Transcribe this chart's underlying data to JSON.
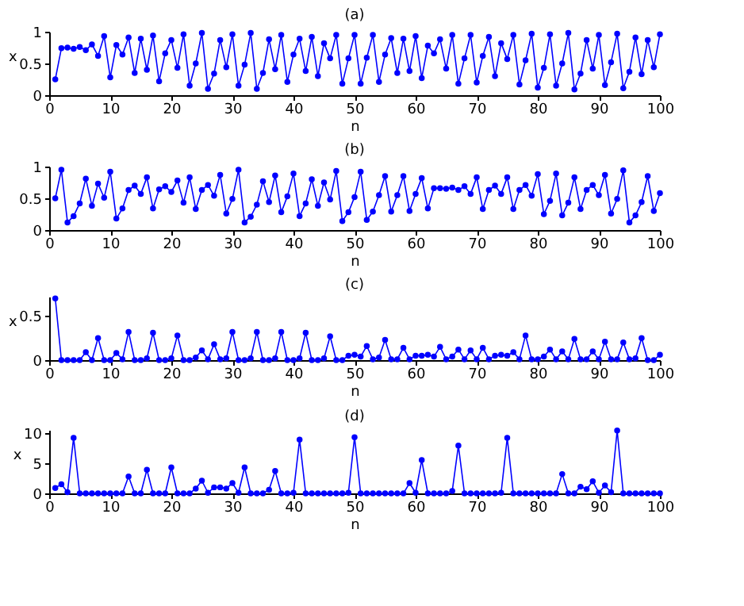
{
  "chart_data": [
    {
      "type": "line",
      "title": "(a)",
      "xlabel": "n",
      "ylabel": "x",
      "xlim": [
        0,
        100
      ],
      "xticks": [
        0,
        10,
        20,
        30,
        40,
        50,
        60,
        70,
        80,
        90,
        100
      ],
      "ylim": [
        0,
        1
      ],
      "yticks": [
        0,
        0.5,
        1
      ],
      "marker": "circle",
      "line_style": "solid",
      "grid": false,
      "x": [
        1,
        2,
        3,
        4,
        5,
        6,
        7,
        8,
        9,
        10,
        11,
        12,
        13,
        14,
        15,
        16,
        17,
        18,
        19,
        20,
        21,
        22,
        23,
        24,
        25,
        26,
        27,
        28,
        29,
        30,
        31,
        32,
        33,
        34,
        35,
        36,
        37,
        38,
        39,
        40,
        41,
        42,
        43,
        44,
        45,
        46,
        47,
        48,
        49,
        50,
        51,
        52,
        53,
        54,
        55,
        56,
        57,
        58,
        59,
        60,
        61,
        62,
        63,
        64,
        65,
        66,
        67,
        68,
        69,
        70,
        71,
        72,
        73,
        74,
        75,
        76,
        77,
        78,
        79,
        80,
        81,
        82,
        83,
        84,
        85,
        86,
        87,
        88,
        89,
        90,
        91,
        92,
        93,
        94,
        95,
        96,
        97,
        98,
        99,
        100
      ],
      "series": [
        {
          "color": "#0000ff",
          "values": [
            0.25,
            0.74,
            0.75,
            0.73,
            0.76,
            0.71,
            0.8,
            0.62,
            0.93,
            0.28,
            0.79,
            0.64,
            0.91,
            0.35,
            0.89,
            0.4,
            0.94,
            0.22,
            0.66,
            0.87,
            0.43,
            0.96,
            0.15,
            0.5,
            0.98,
            0.1,
            0.34,
            0.87,
            0.44,
            0.96,
            0.15,
            0.48,
            0.98,
            0.1,
            0.35,
            0.88,
            0.41,
            0.95,
            0.21,
            0.64,
            0.89,
            0.38,
            0.92,
            0.3,
            0.82,
            0.58,
            0.95,
            0.18,
            0.58,
            0.95,
            0.18,
            0.59,
            0.95,
            0.21,
            0.64,
            0.9,
            0.35,
            0.89,
            0.38,
            0.93,
            0.27,
            0.78,
            0.66,
            0.88,
            0.42,
            0.95,
            0.18,
            0.58,
            0.95,
            0.2,
            0.62,
            0.92,
            0.3,
            0.82,
            0.57,
            0.95,
            0.17,
            0.55,
            0.97,
            0.12,
            0.43,
            0.96,
            0.15,
            0.5,
            0.98,
            0.09,
            0.34,
            0.87,
            0.42,
            0.95,
            0.16,
            0.52,
            0.97,
            0.11,
            0.37,
            0.91,
            0.33,
            0.87,
            0.44,
            0.96
          ]
        }
      ]
    },
    {
      "type": "line",
      "title": "(b)",
      "xlabel": "n",
      "xlim": [
        0,
        100
      ],
      "xticks": [
        0,
        10,
        20,
        30,
        40,
        50,
        60,
        70,
        80,
        90,
        100
      ],
      "ylim": [
        0,
        1
      ],
      "yticks": [
        0,
        0.5,
        1
      ],
      "marker": "circle",
      "line_style": "solid",
      "grid": false,
      "x": [
        1,
        2,
        3,
        4,
        5,
        6,
        7,
        8,
        9,
        10,
        11,
        12,
        13,
        14,
        15,
        16,
        17,
        18,
        19,
        20,
        21,
        22,
        23,
        24,
        25,
        26,
        27,
        28,
        29,
        30,
        31,
        32,
        33,
        34,
        35,
        36,
        37,
        38,
        39,
        40,
        41,
        42,
        43,
        44,
        45,
        46,
        47,
        48,
        49,
        50,
        51,
        52,
        53,
        54,
        55,
        56,
        57,
        58,
        59,
        60,
        61,
        62,
        63,
        64,
        65,
        66,
        67,
        68,
        69,
        70,
        71,
        72,
        73,
        74,
        75,
        76,
        77,
        78,
        79,
        80,
        81,
        82,
        83,
        84,
        85,
        86,
        87,
        88,
        89,
        90,
        91,
        92,
        93,
        94,
        95,
        96,
        97,
        98,
        99,
        100
      ],
      "series": [
        {
          "color": "#0000ff",
          "values": [
            0.5,
            0.95,
            0.12,
            0.22,
            0.42,
            0.81,
            0.38,
            0.73,
            0.51,
            0.92,
            0.18,
            0.34,
            0.63,
            0.7,
            0.57,
            0.83,
            0.34,
            0.64,
            0.69,
            0.6,
            0.78,
            0.43,
            0.83,
            0.33,
            0.63,
            0.71,
            0.54,
            0.87,
            0.26,
            0.49,
            0.95,
            0.12,
            0.21,
            0.4,
            0.77,
            0.44,
            0.86,
            0.28,
            0.53,
            0.89,
            0.22,
            0.42,
            0.8,
            0.38,
            0.75,
            0.48,
            0.93,
            0.14,
            0.28,
            0.52,
            0.92,
            0.16,
            0.29,
            0.55,
            0.85,
            0.29,
            0.55,
            0.85,
            0.3,
            0.57,
            0.82,
            0.34,
            0.66,
            0.66,
            0.65,
            0.67,
            0.63,
            0.69,
            0.57,
            0.83,
            0.33,
            0.63,
            0.7,
            0.57,
            0.83,
            0.33,
            0.63,
            0.71,
            0.54,
            0.88,
            0.25,
            0.46,
            0.89,
            0.23,
            0.43,
            0.83,
            0.33,
            0.63,
            0.71,
            0.55,
            0.87,
            0.26,
            0.49,
            0.94,
            0.12,
            0.23,
            0.44,
            0.85,
            0.3,
            0.58
          ]
        }
      ]
    },
    {
      "type": "line",
      "title": "(c)",
      "xlabel": "n",
      "ylabel": "x",
      "xlim": [
        0,
        100
      ],
      "xticks": [
        0,
        10,
        20,
        30,
        40,
        50,
        60,
        70,
        80,
        90,
        100
      ],
      "ylim": [
        0,
        0.72
      ],
      "yticks": [
        0,
        0.5
      ],
      "marker": "circle",
      "line_style": "solid",
      "grid": false,
      "x": [
        1,
        2,
        3,
        4,
        5,
        6,
        7,
        8,
        9,
        10,
        11,
        12,
        13,
        14,
        15,
        16,
        17,
        18,
        19,
        20,
        21,
        22,
        23,
        24,
        25,
        26,
        27,
        28,
        29,
        30,
        31,
        32,
        33,
        34,
        35,
        36,
        37,
        38,
        39,
        40,
        41,
        42,
        43,
        44,
        45,
        46,
        47,
        48,
        49,
        50,
        51,
        52,
        53,
        54,
        55,
        56,
        57,
        58,
        59,
        60,
        61,
        62,
        63,
        64,
        65,
        66,
        67,
        68,
        69,
        70,
        71,
        72,
        73,
        74,
        75,
        76,
        77,
        78,
        79,
        80,
        81,
        82,
        83,
        84,
        85,
        86,
        87,
        88,
        89,
        90,
        91,
        92,
        93,
        94,
        95,
        96,
        97,
        98,
        99,
        100
      ],
      "series": [
        {
          "color": "#0000ff",
          "values": [
            0.7,
            0,
            0,
            0,
            0,
            0.09,
            0,
            0.25,
            0,
            0,
            0.08,
            0.01,
            0.32,
            0,
            0,
            0.02,
            0.31,
            0,
            0,
            0.02,
            0.28,
            0,
            0,
            0.03,
            0.11,
            0.01,
            0.18,
            0.01,
            0.02,
            0.32,
            0,
            0,
            0.02,
            0.32,
            0,
            0,
            0.02,
            0.32,
            0,
            0,
            0.02,
            0.31,
            0,
            0,
            0.02,
            0.27,
            0,
            0,
            0.05,
            0.06,
            0.04,
            0.16,
            0.01,
            0.03,
            0.23,
            0.01,
            0.01,
            0.14,
            0.01,
            0.05,
            0.05,
            0.06,
            0.04,
            0.15,
            0.01,
            0.04,
            0.12,
            0.01,
            0.11,
            0.01,
            0.14,
            0.01,
            0.05,
            0.06,
            0.05,
            0.09,
            0.01,
            0.28,
            0.01,
            0.01,
            0.04,
            0.12,
            0.01,
            0.1,
            0.01,
            0.24,
            0.01,
            0.01,
            0.1,
            0.01,
            0.21,
            0.01,
            0.01,
            0.2,
            0.01,
            0.02,
            0.25,
            0,
            0,
            0.06
          ]
        }
      ]
    },
    {
      "type": "line",
      "title": "(d)",
      "xlabel": "n",
      "ylabel": "x",
      "xlim": [
        0,
        100
      ],
      "xticks": [
        0,
        10,
        20,
        30,
        40,
        50,
        60,
        70,
        80,
        90,
        100
      ],
      "ylim": [
        0,
        10.5
      ],
      "yticks": [
        0,
        5,
        10
      ],
      "marker": "circle",
      "line_style": "solid",
      "grid": false,
      "x": [
        1,
        2,
        3,
        4,
        5,
        6,
        7,
        8,
        9,
        10,
        11,
        12,
        13,
        14,
        15,
        16,
        17,
        18,
        19,
        20,
        21,
        22,
        23,
        24,
        25,
        26,
        27,
        28,
        29,
        30,
        31,
        32,
        33,
        34,
        35,
        36,
        37,
        38,
        39,
        40,
        41,
        42,
        43,
        44,
        45,
        46,
        47,
        48,
        49,
        50,
        51,
        52,
        53,
        54,
        55,
        56,
        57,
        58,
        59,
        60,
        61,
        62,
        63,
        64,
        65,
        66,
        67,
        68,
        69,
        70,
        71,
        72,
        73,
        74,
        75,
        76,
        77,
        78,
        79,
        80,
        81,
        82,
        83,
        84,
        85,
        86,
        87,
        88,
        89,
        90,
        91,
        92,
        93,
        94,
        95,
        96,
        97,
        98,
        99,
        100
      ],
      "series": [
        {
          "color": "#0000ff",
          "values": [
            0.9,
            1.5,
            0.2,
            9.2,
            0,
            0,
            0,
            0,
            0,
            0,
            0,
            0,
            2.8,
            0,
            0,
            3.9,
            0,
            0,
            0,
            4.3,
            0,
            0,
            0,
            0.8,
            2.1,
            0.1,
            1.0,
            1.0,
            0.8,
            1.7,
            0.1,
            4.3,
            0,
            0,
            0,
            0.6,
            3.7,
            0,
            0,
            0.1,
            8.9,
            0,
            0,
            0,
            0,
            0,
            0,
            0,
            0.1,
            9.3,
            0,
            0,
            0,
            0,
            0,
            0,
            0,
            0,
            1.7,
            0.1,
            5.5,
            0,
            0,
            0,
            0,
            0.4,
            7.9,
            0,
            0,
            0,
            0,
            0,
            0,
            0.1,
            9.2,
            0,
            0,
            0,
            0,
            0,
            0,
            0,
            0,
            3.2,
            0,
            0,
            1.1,
            0.7,
            2.0,
            0.1,
            1.3,
            0.2,
            10.4,
            0,
            0,
            0,
            0,
            0,
            0,
            0
          ]
        }
      ]
    }
  ]
}
